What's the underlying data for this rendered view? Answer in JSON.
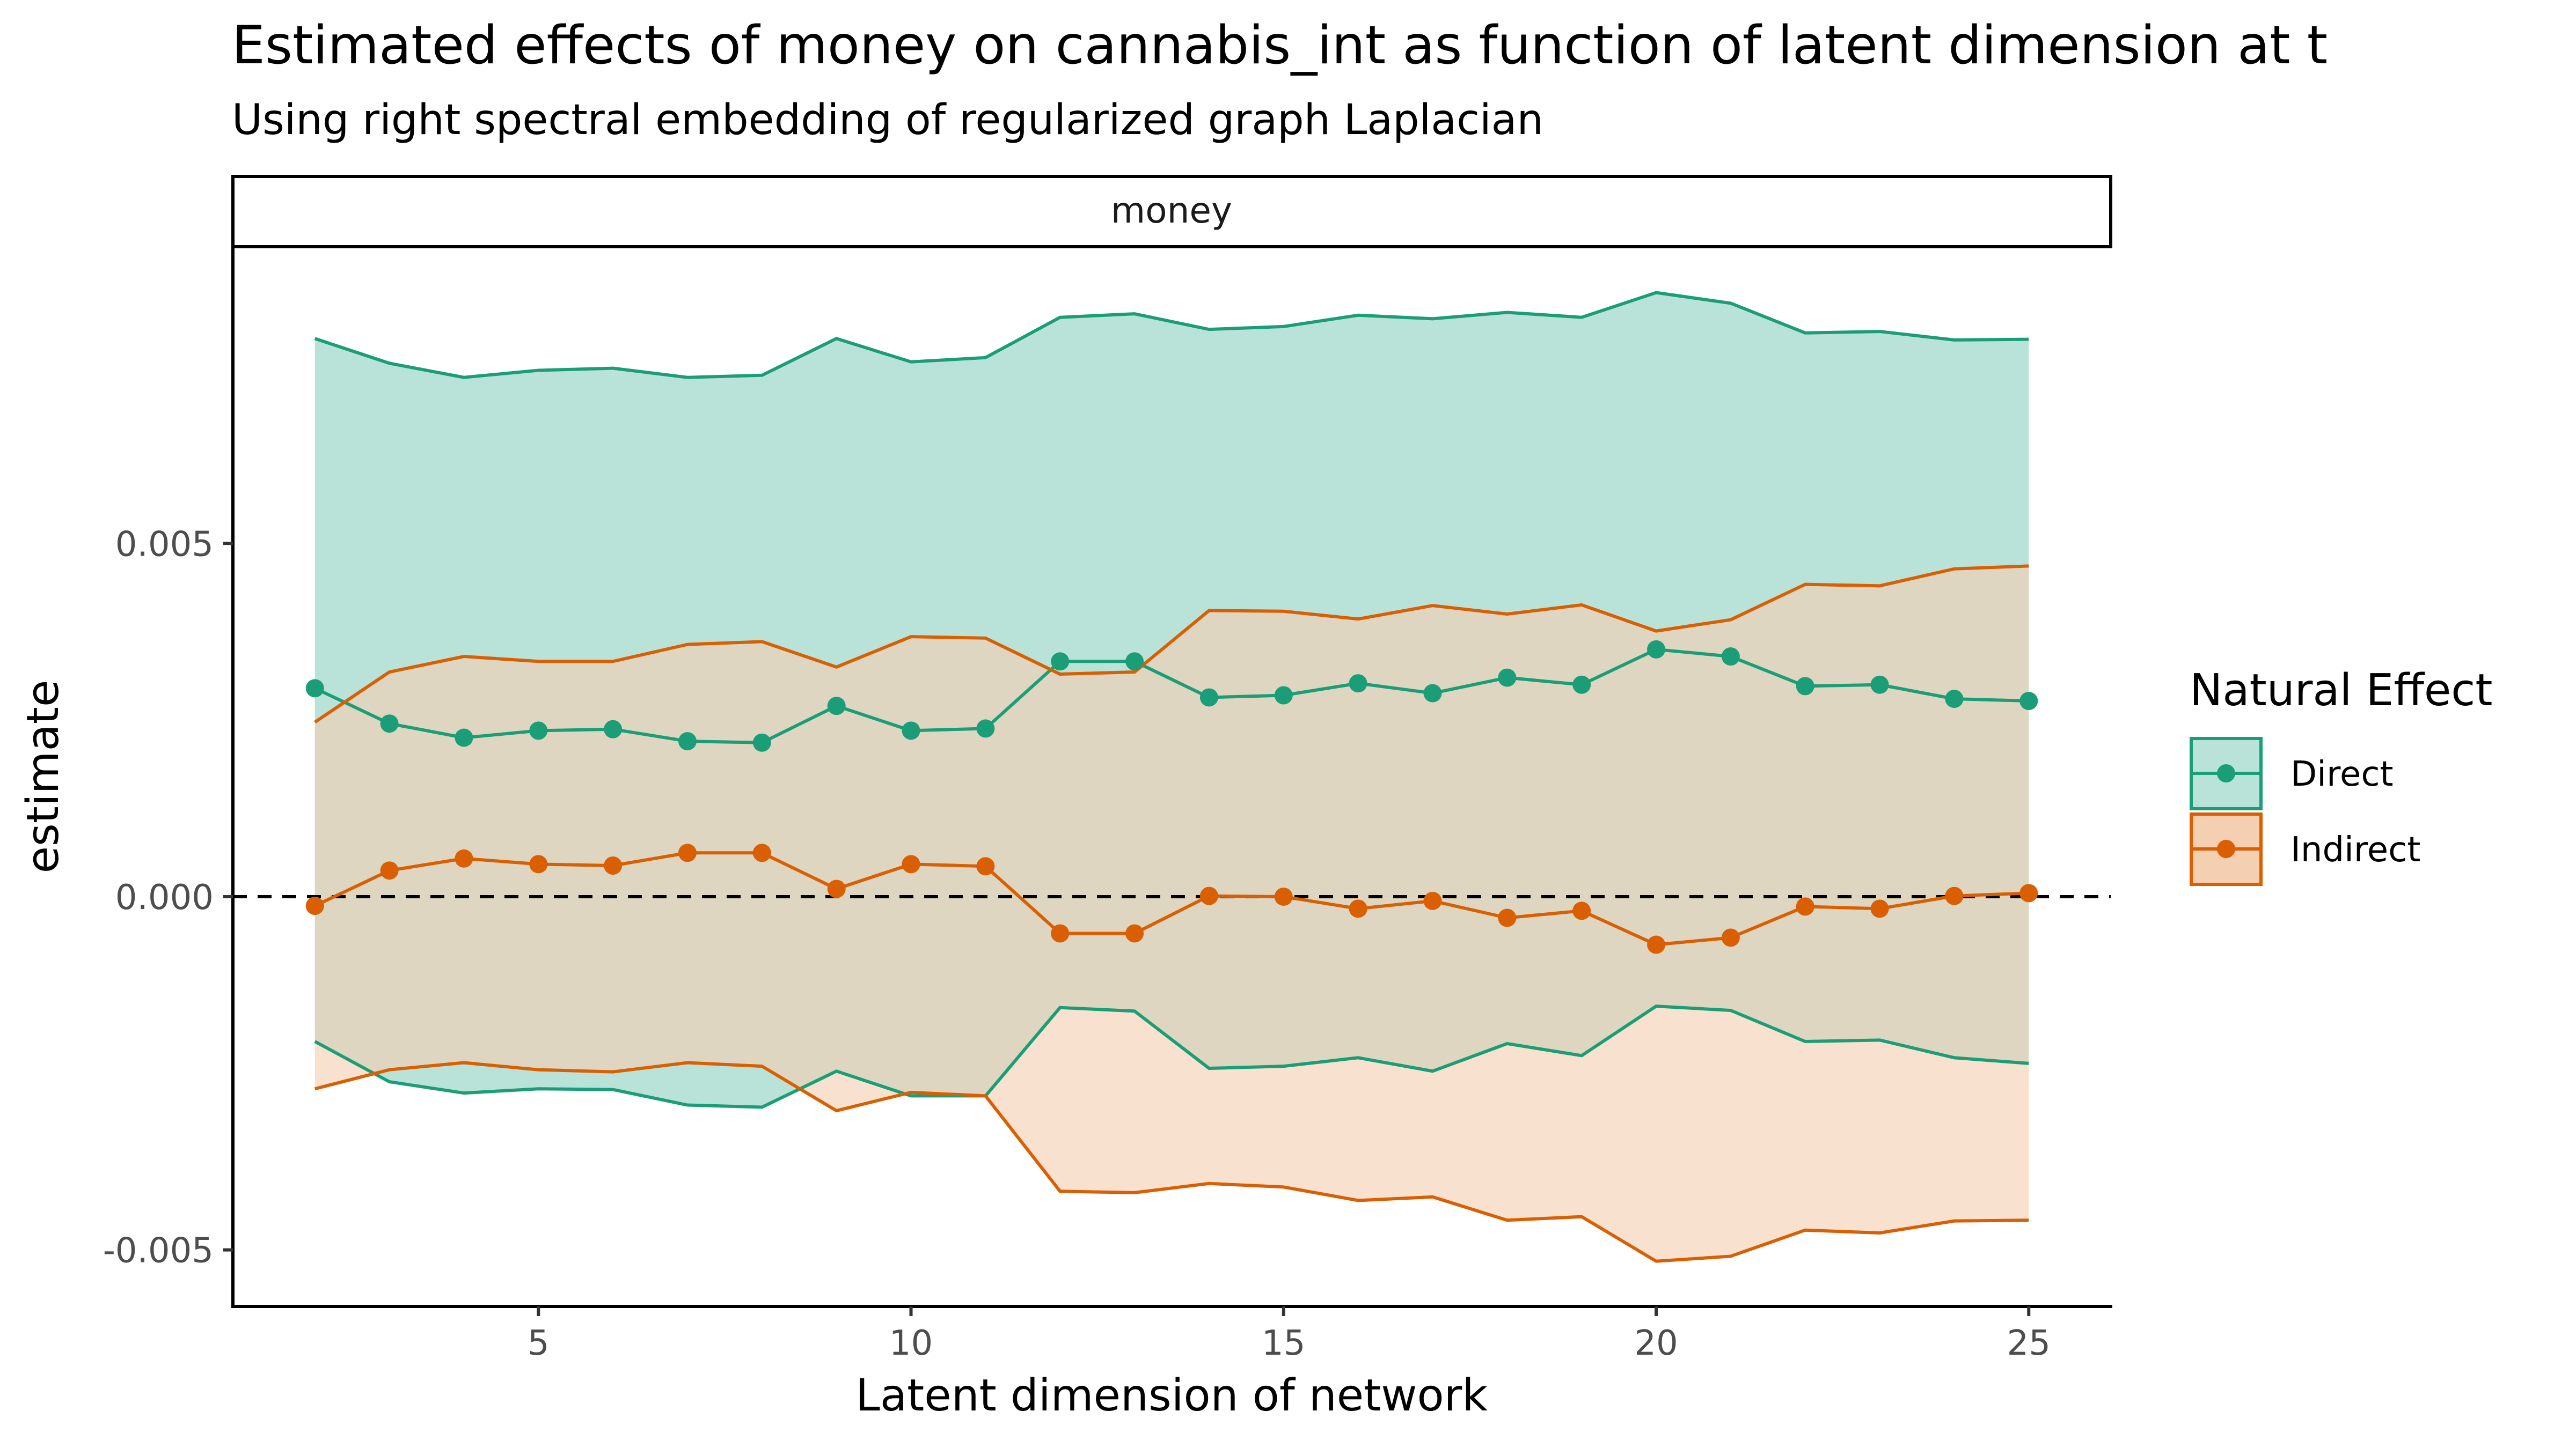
{
  "chart_data": {
    "type": "line",
    "title": "Estimated effects of money on cannabis_int as function of latent dimension at t",
    "subtitle": "Using right spectral embedding of regularized graph Laplacian",
    "facet_label": "money",
    "xlabel": "Latent dimension of network",
    "ylabel": "estimate",
    "x_ticks": [
      5,
      10,
      15,
      20,
      25
    ],
    "y_ticks": [
      -0.005,
      0.0,
      0.005
    ],
    "y_tick_labels": [
      "-0.005",
      "0.000",
      "0.005"
    ],
    "xlim": [
      0.9,
      26.1
    ],
    "ylim": [
      -0.0058,
      0.0092
    ],
    "reference_line": 0,
    "grid": false,
    "legend": {
      "title": "Natural Effect",
      "placement": "right",
      "entries": [
        "Direct",
        "Indirect"
      ]
    },
    "x": [
      2,
      3,
      4,
      5,
      6,
      7,
      8,
      9,
      10,
      11,
      12,
      13,
      14,
      15,
      16,
      17,
      18,
      19,
      20,
      21,
      22,
      23,
      24,
      25
    ],
    "series": [
      {
        "name": "Direct",
        "line_color": "#1b9e77",
        "fill_color": "#b9e3d8",
        "estimate": [
          0.00295,
          0.00245,
          0.00225,
          0.00235,
          0.00237,
          0.0022,
          0.00218,
          0.0027,
          0.00235,
          0.00238,
          0.00333,
          0.00333,
          0.00282,
          0.00285,
          0.00302,
          0.00288,
          0.0031,
          0.003,
          0.0035,
          0.0034,
          0.00298,
          0.003,
          0.0028,
          0.00277
        ],
        "upper": [
          0.0079,
          0.00755,
          0.00735,
          0.00745,
          0.00748,
          0.00735,
          0.00738,
          0.0079,
          0.00757,
          0.00763,
          0.0082,
          0.00825,
          0.00803,
          0.00807,
          0.00823,
          0.00818,
          0.00827,
          0.0082,
          0.00855,
          0.0084,
          0.00798,
          0.008,
          0.00788,
          0.00789
        ],
        "lower": [
          -0.00205,
          -0.00262,
          -0.00278,
          -0.00272,
          -0.00273,
          -0.00295,
          -0.00298,
          -0.00247,
          -0.00282,
          -0.00282,
          -0.00157,
          -0.00162,
          -0.00243,
          -0.0024,
          -0.00228,
          -0.00247,
          -0.00208,
          -0.00225,
          -0.00155,
          -0.00161,
          -0.00205,
          -0.00203,
          -0.00228,
          -0.00236
        ]
      },
      {
        "name": "Indirect",
        "line_color": "#d95f02",
        "fill_color": "#f5cfb2",
        "estimate": [
          -0.00013,
          0.00037,
          0.00054,
          0.00046,
          0.00044,
          0.00062,
          0.00062,
          0.00011,
          0.00046,
          0.00043,
          -0.00052,
          -0.00052,
          1e-05,
          0.0,
          -0.00017,
          -6e-05,
          -0.0003,
          -0.0002,
          -0.00068,
          -0.00058,
          -0.00014,
          -0.00017,
          1e-05,
          5e-05
        ],
        "upper": [
          0.00247,
          0.00318,
          0.0034,
          0.00333,
          0.00333,
          0.00357,
          0.00361,
          0.00325,
          0.00368,
          0.00366,
          0.00315,
          0.00318,
          0.00405,
          0.00404,
          0.00393,
          0.00412,
          0.004,
          0.00413,
          0.00376,
          0.00392,
          0.00442,
          0.0044,
          0.00464,
          0.00468
        ],
        "lower": [
          -0.00272,
          -0.00245,
          -0.00235,
          -0.00245,
          -0.00248,
          -0.00235,
          -0.0024,
          -0.00303,
          -0.00277,
          -0.00282,
          -0.00417,
          -0.00419,
          -0.00406,
          -0.00411,
          -0.0043,
          -0.00425,
          -0.00458,
          -0.00453,
          -0.00516,
          -0.00509,
          -0.00472,
          -0.00476,
          -0.00459,
          -0.00458
        ]
      }
    ]
  }
}
